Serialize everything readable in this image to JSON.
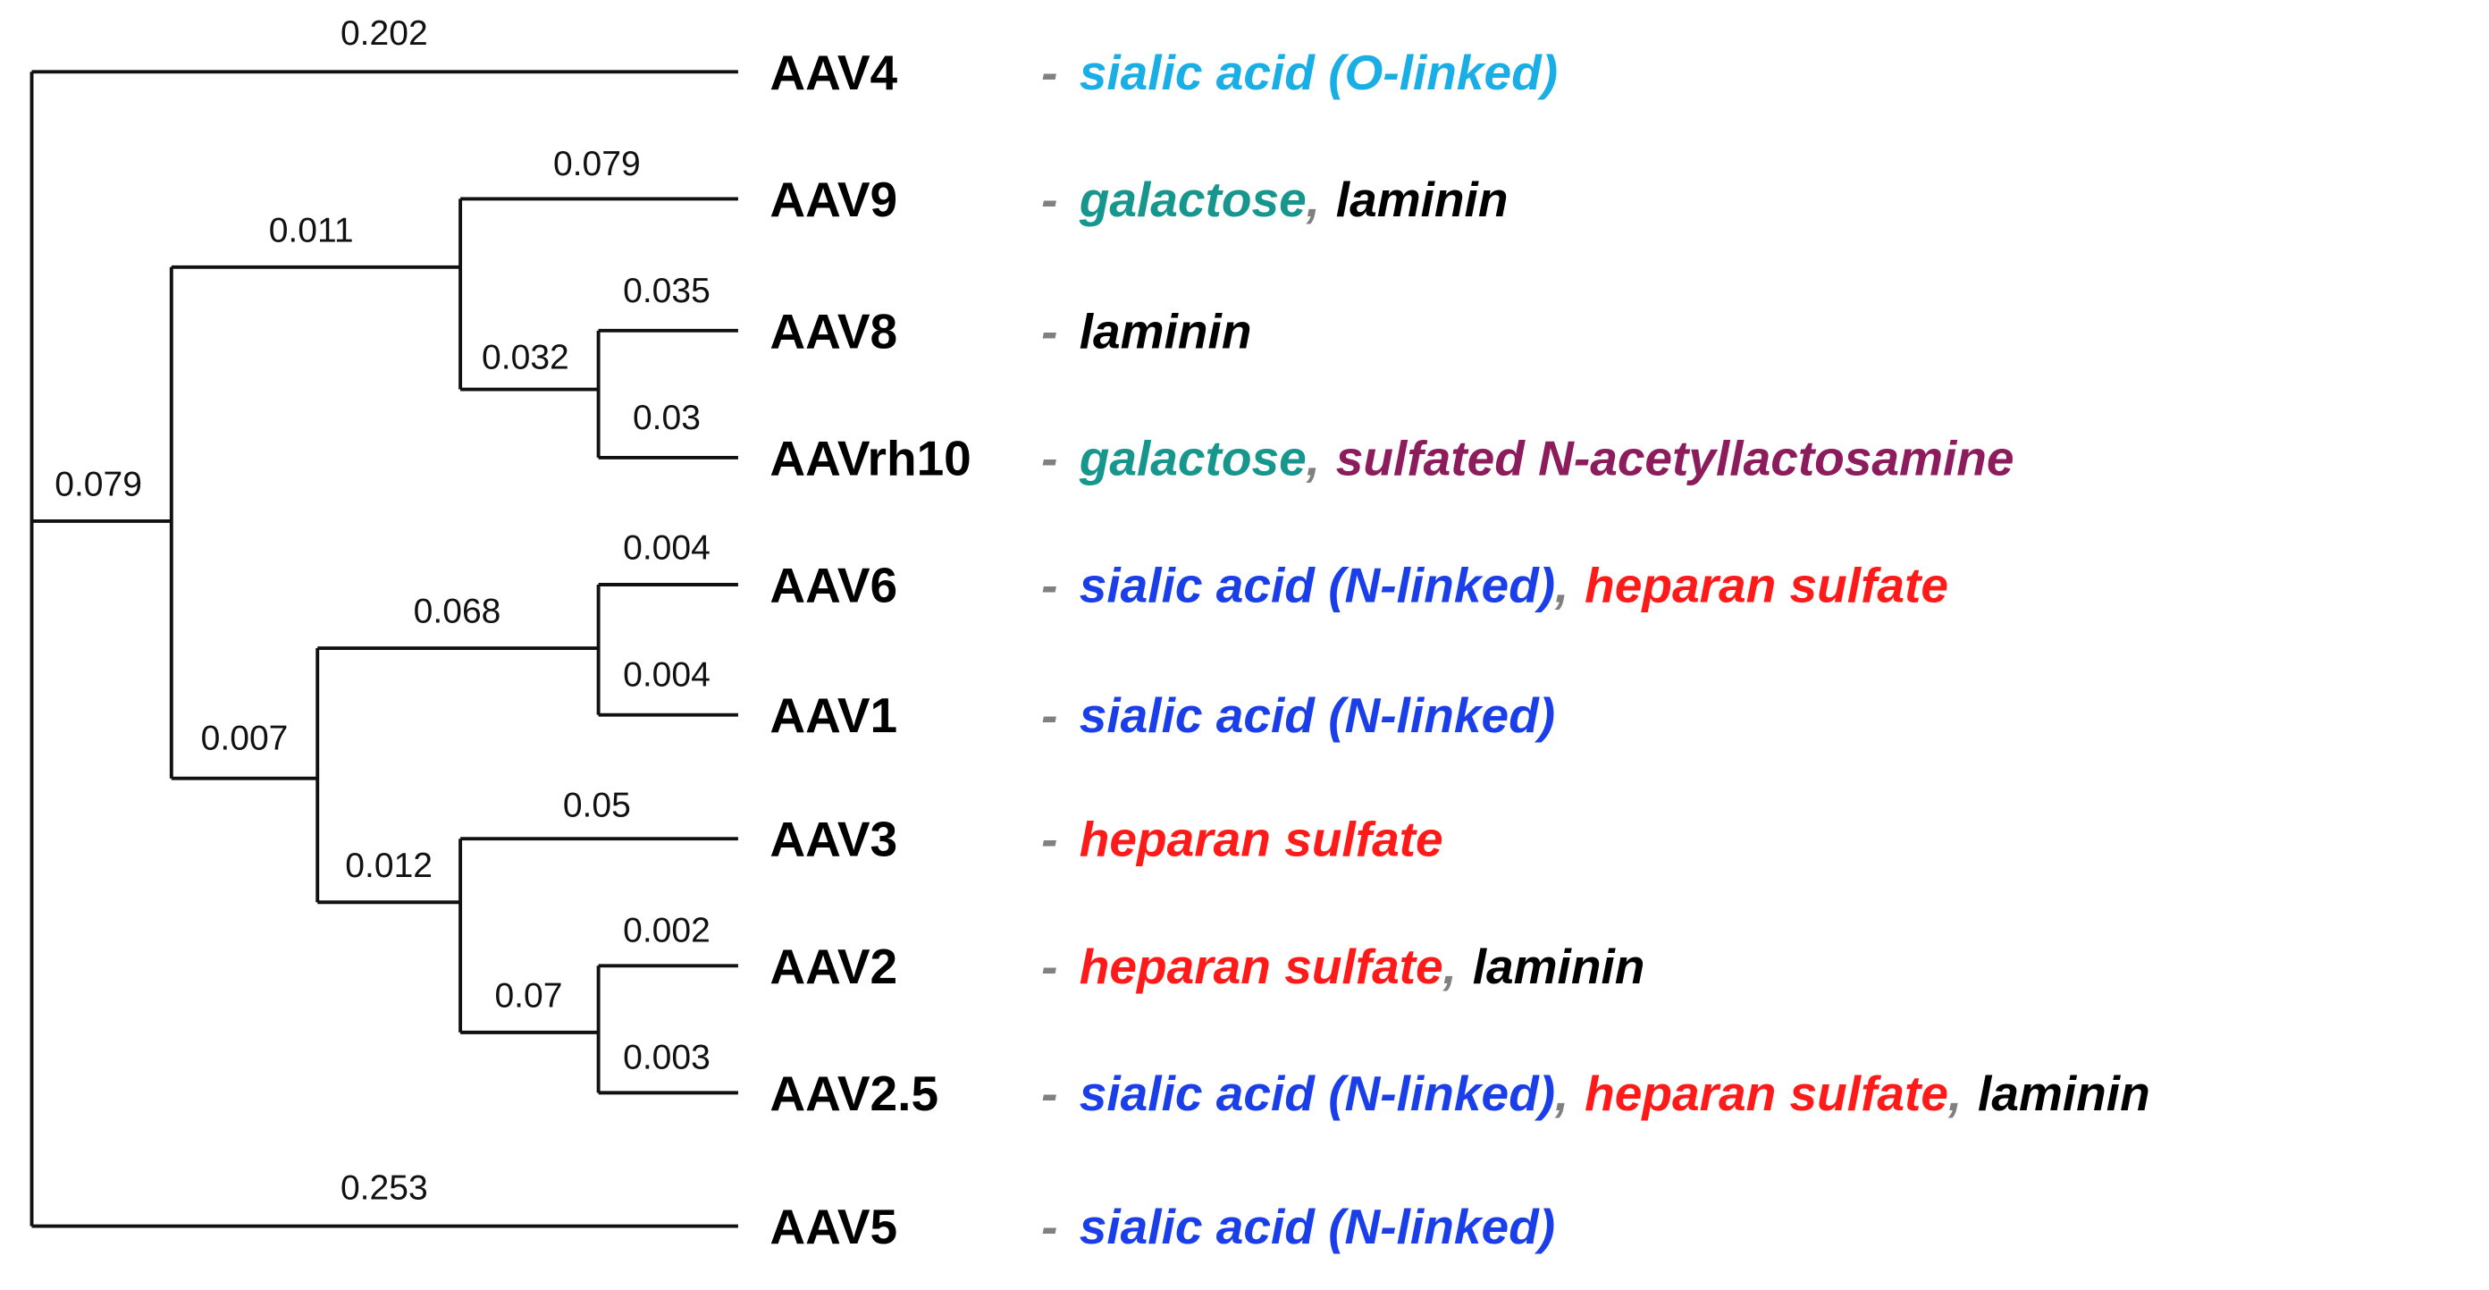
{
  "branch_lengths": [
    0.202,
    0.253,
    0.079,
    0.011,
    0.079,
    0.032,
    0.035,
    0.03,
    0.007,
    0.068,
    0.004,
    0.004,
    0.012,
    0.05,
    0.07,
    0.002,
    0.003
  ],
  "dash": "-",
  "comma": ",",
  "leaves": [
    {
      "name": "AAV4",
      "receptors": [
        {
          "text": "sialic acid (O-linked)",
          "color": "#1aaee6"
        }
      ]
    },
    {
      "name": "AAV9",
      "receptors": [
        {
          "text": "galactose",
          "color": "#16968c"
        },
        {
          "text": "laminin",
          "color": "#000000"
        }
      ]
    },
    {
      "name": "AAV8",
      "receptors": [
        {
          "text": "laminin",
          "color": "#000000"
        }
      ]
    },
    {
      "name": "AAVrh10",
      "receptors": [
        {
          "text": "galactose",
          "color": "#16968c"
        },
        {
          "text": "sulfated N-acetyllactosamine",
          "color": "#8c1c5c"
        }
      ]
    },
    {
      "name": "AAV6",
      "receptors": [
        {
          "text": "sialic acid (N-linked)",
          "color": "#1a3ee8"
        },
        {
          "text": "heparan sulfate",
          "color": "#ff1a1a"
        }
      ]
    },
    {
      "name": "AAV1",
      "receptors": [
        {
          "text": "sialic acid (N-linked)",
          "color": "#1a3ee8"
        }
      ]
    },
    {
      "name": "AAV3",
      "receptors": [
        {
          "text": "heparan sulfate",
          "color": "#ff1a1a"
        }
      ]
    },
    {
      "name": "AAV2",
      "receptors": [
        {
          "text": "heparan sulfate",
          "color": "#ff1a1a"
        },
        {
          "text": "laminin",
          "color": "#000000"
        }
      ]
    },
    {
      "name": "AAV2.5",
      "receptors": [
        {
          "text": "sialic acid (N-linked)",
          "color": "#1a3ee8"
        },
        {
          "text": "heparan sulfate",
          "color": "#ff1a1a"
        },
        {
          "text": "laminin",
          "color": "#000000"
        }
      ]
    },
    {
      "name": "AAV5",
      "receptors": [
        {
          "text": "sialic acid (N-linked)",
          "color": "#1a3ee8"
        }
      ]
    }
  ]
}
